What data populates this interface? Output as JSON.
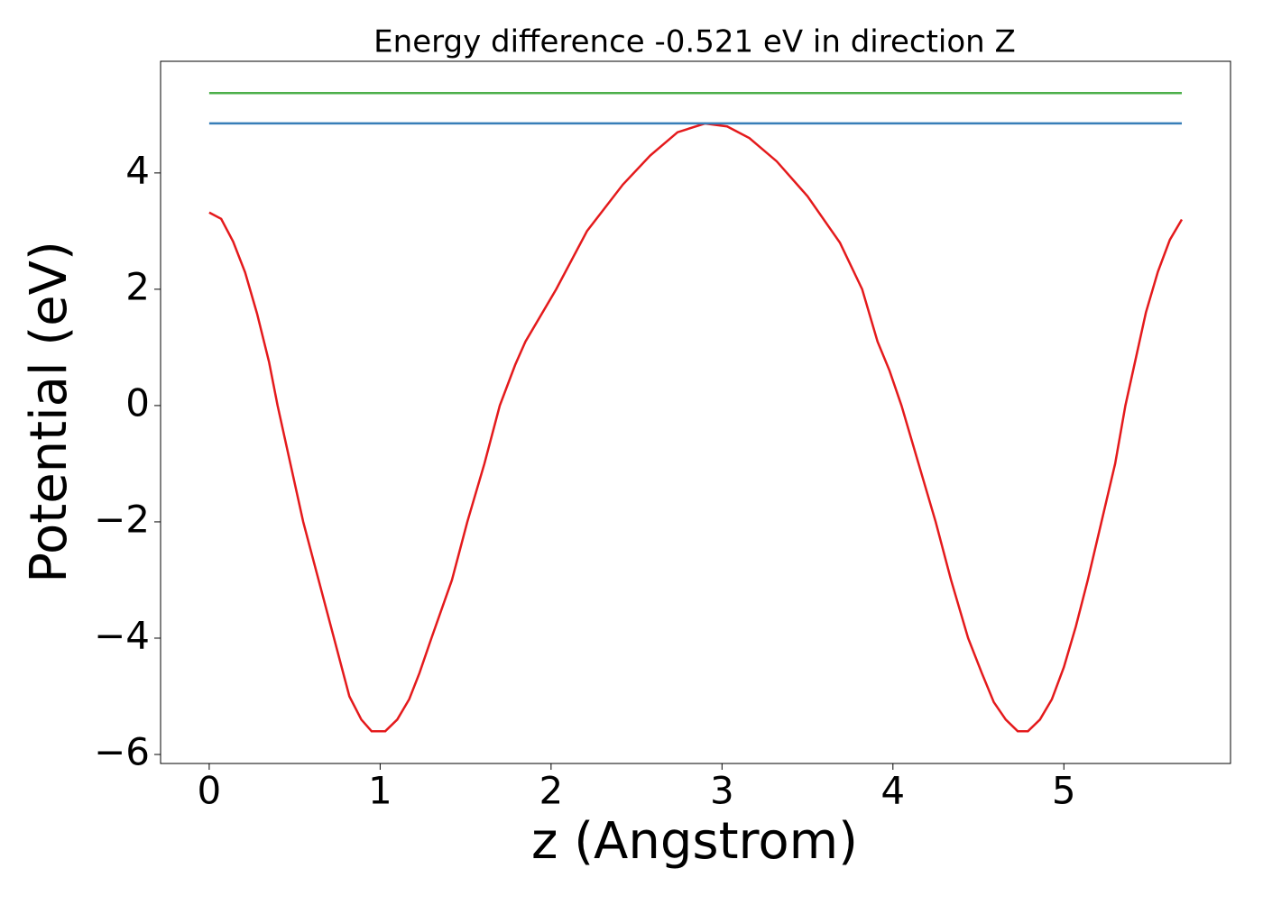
{
  "chart_data": {
    "type": "line",
    "title": "Energy difference -0.521 eV in direction Z",
    "x_label": "z (Angstrom)",
    "y_label": "Potential (eV)",
    "xlim": [
      -0.2845,
      5.975
    ],
    "ylim": [
      -6.155,
      5.92
    ],
    "xticks": [
      0,
      1,
      2,
      3,
      4,
      5
    ],
    "yticks": [
      {
        "value": -6,
        "label": "−6"
      },
      {
        "value": -4,
        "label": "−4"
      },
      {
        "value": -2,
        "label": "−2"
      },
      0,
      2,
      4
    ],
    "grid": false,
    "series": [
      {
        "color": "#e41a1c",
        "x": [
          0,
          0.07,
          0.14,
          0.21,
          0.28,
          0.35,
          0.4,
          0.55,
          0.73,
          0.82,
          0.89,
          0.95,
          1.03,
          1.1,
          1.17,
          1.23,
          1.3,
          1.42,
          1.51,
          1.61,
          1.7,
          1.79,
          1.85,
          2.03,
          2.21,
          2.42,
          2.58,
          2.74,
          2.9,
          3.03,
          3.16,
          3.32,
          3.5,
          3.69,
          3.82,
          3.91,
          3.98,
          4.05,
          4.15,
          4.25,
          4.34,
          4.44,
          4.52,
          4.59,
          4.66,
          4.73,
          4.79,
          4.86,
          4.93,
          5.0,
          5.07,
          5.14,
          5.22,
          5.3,
          5.36,
          5.42,
          5.48,
          5.55,
          5.62,
          5.69
        ],
        "values": [
          3.32,
          3.21,
          2.82,
          2.29,
          1.58,
          0.75,
          0,
          -2,
          -4,
          -5,
          -5.4,
          -5.6,
          -5.6,
          -5.4,
          -5.05,
          -4.6,
          -4,
          -3,
          -2,
          -1,
          0,
          0.7,
          1.1,
          2,
          3,
          3.8,
          4.3,
          4.7,
          4.85,
          4.8,
          4.6,
          4.2,
          3.6,
          2.8,
          2.0,
          1.1,
          0.6,
          0,
          -1,
          -2,
          -3,
          -4,
          -4.6,
          -5.1,
          -5.4,
          -5.6,
          -5.6,
          -5.4,
          -5.05,
          -4.5,
          -3.8,
          -3,
          -2,
          -1,
          0,
          0.8,
          1.6,
          2.3,
          2.85,
          3.2
        ]
      },
      {
        "color": "#377eb8",
        "x": [
          0,
          5.69
        ],
        "values": [
          4.853,
          4.853
        ]
      },
      {
        "color": "#4daf4a",
        "x": [
          0,
          5.69
        ],
        "values": [
          5.374,
          5.374
        ]
      }
    ]
  }
}
